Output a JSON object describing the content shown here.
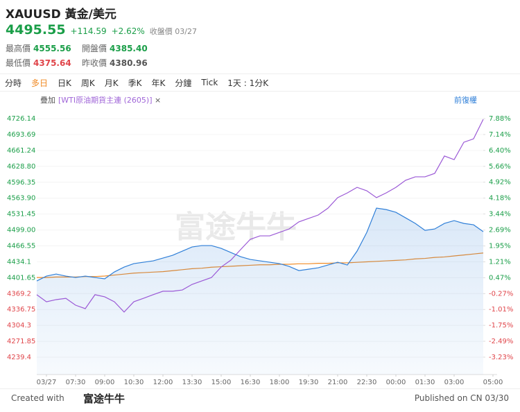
{
  "header": {
    "title": "XAUUSD 黃金/美元",
    "price": "4495.55",
    "change": "+114.59",
    "change_pct": "+2.62%",
    "status": "收盤價 03/27",
    "stats": [
      {
        "label": "最高價",
        "value": "4555.56"
      },
      {
        "label": "開盤價",
        "value": "4385.40"
      },
      {
        "label": "最低價",
        "value": "4375.64"
      },
      {
        "label": "昨收價",
        "value": "4380.96"
      }
    ]
  },
  "tabs": [
    "分時",
    "多日",
    "日K",
    "周K",
    "月K",
    "季K",
    "年K",
    "分鐘",
    "Tick",
    "1天 : 1分K"
  ],
  "toolbar": {
    "overlay": "疊加",
    "overlay_item": "[WTI原油期貨主連 (2605)]",
    "close": "×",
    "adjust": "前復權"
  },
  "chart_data": {
    "type": "line",
    "watermark": "富途牛牛",
    "categories": [
      null,
      "03/27",
      null,
      null,
      "07:30",
      null,
      null,
      "09:00",
      null,
      null,
      "10:30",
      null,
      null,
      "12:00",
      null,
      null,
      "13:30",
      null,
      null,
      "15:00",
      null,
      null,
      "16:30",
      null,
      null,
      "18:00",
      null,
      null,
      "19:30",
      null,
      null,
      "21:00",
      null,
      null,
      "22:30",
      null,
      null,
      "00:00",
      null,
      null,
      "01:30",
      null,
      null,
      "03:00",
      null,
      null,
      null,
      "05:00"
    ],
    "series": [
      {
        "color": "#2f7fd8",
        "values": [
          4395.0,
          4404.9,
          4409.1,
          4404.9,
          4402.1,
          4404.9,
          4402.1,
          4399.3,
          4413.4,
          4423.3,
          4430.4,
          4433.2,
          4436.0,
          4441.7,
          4447.4,
          4455.9,
          4464.3,
          4467.2,
          4467.2,
          4461.5,
          4453.0,
          4444.5,
          4438.9,
          4436.0,
          4433.2,
          4430.4,
          4424.7,
          4416.2,
          4419.0,
          4421.9,
          4427.5,
          4433.2,
          4427.5,
          4455.9,
          4494.0,
          4543.6,
          4540.7,
          4535.1,
          4523.8,
          4512.4,
          4498.3,
          4501.1,
          4512.4,
          4518.1,
          4512.4,
          4509.6,
          4495.5,
          null
        ]
      },
      {
        "color": "#9b59d6",
        "axis": "y2",
        "values": [
          -0.32,
          -0.65,
          -0.55,
          -0.49,
          -0.81,
          -0.97,
          -0.32,
          -0.42,
          -0.65,
          -1.13,
          -0.65,
          -0.49,
          -0.32,
          -0.16,
          -0.16,
          -0.1,
          0.16,
          0.32,
          0.48,
          0.97,
          1.29,
          1.78,
          2.26,
          2.42,
          2.42,
          2.58,
          2.74,
          3.07,
          3.23,
          3.39,
          3.71,
          4.2,
          4.42,
          4.68,
          4.52,
          4.2,
          4.42,
          4.68,
          5.01,
          5.17,
          5.17,
          5.33,
          6.14,
          5.97,
          6.78,
          6.94,
          7.85,
          null
        ]
      },
      {
        "color": "#f08a24",
        "values": [
          4402,
          4402,
          4403,
          4403,
          4403,
          4404,
          4404,
          4405,
          4407,
          4409,
          4411,
          4412,
          4413,
          4414,
          4416,
          4418,
          4420,
          4421,
          4423,
          4424,
          4425,
          4426,
          4427,
          4428,
          4428,
          4429,
          4429,
          4430,
          4430,
          4431,
          4431,
          4432,
          4432,
          4433,
          4434,
          4435,
          4436,
          4437,
          4438,
          4440,
          4441,
          4443,
          4444,
          4446,
          4448,
          4450,
          4452,
          null
        ]
      }
    ],
    "ylim": [
      4204,
      4756
    ],
    "yticks": [
      4239.4,
      4271.85,
      4304.3,
      4336.75,
      4369.2,
      4401.65,
      4434.1,
      4466.55,
      {
        "value": 4499,
        "label": "4499.00"
      },
      4531.45,
      {
        "value": 4563.9,
        "label": "4563.90"
      },
      4596.35,
      {
        "value": 4628.8,
        "label": "4628.80"
      },
      4661.24,
      4693.69,
      4726.14
    ],
    "y2lim": [
      -4.04,
      8.56
    ],
    "y2ticks": [
      {
        "value": -3.23,
        "label": "-3.23%"
      },
      {
        "value": -2.49,
        "label": "-2.49%"
      },
      {
        "value": -1.75,
        "label": "-1.75%"
      },
      {
        "value": -1.01,
        "label": "-1.01%"
      },
      {
        "value": -0.27,
        "label": "-0.27%"
      },
      {
        "value": 0.47,
        "label": "0.47%"
      },
      {
        "value": 1.21,
        "label": "1.21%"
      },
      {
        "value": 1.95,
        "label": "1.95%"
      },
      {
        "value": 2.69,
        "label": "2.69%"
      },
      {
        "value": 3.44,
        "label": "3.44%"
      },
      {
        "value": 4.18,
        "label": "4.18%"
      },
      {
        "value": 4.92,
        "label": "4.92%"
      },
      {
        "value": 5.66,
        "label": "5.66%"
      },
      {
        "value": 6.4,
        "label": "6.40%"
      },
      {
        "value": 7.14,
        "label": "7.14%"
      },
      {
        "value": 7.88,
        "label": "7.88%"
      }
    ],
    "grid": true
  },
  "footer": {
    "created": "Created with",
    "brand": "富途牛牛",
    "published": "Published on CN 03/30"
  }
}
